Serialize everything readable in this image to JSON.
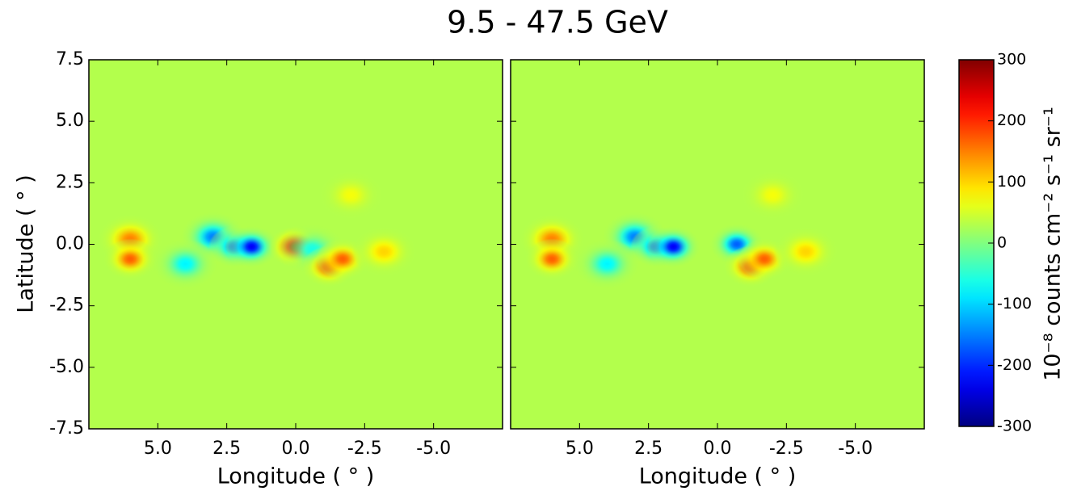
{
  "chart_data": {
    "type": "heatmap",
    "title": "9.5 - 47.5 GeV",
    "xlabel": "Longitude ( ° )",
    "ylabel": "Latitude ( ° )",
    "xlim": [
      7.5,
      -7.5
    ],
    "ylim": [
      -7.5,
      7.5
    ],
    "xticks": [
      {
        "value": 5.0,
        "label": "5.0"
      },
      {
        "value": 2.5,
        "label": "2.5"
      },
      {
        "value": 0,
        "label": "0.0"
      },
      {
        "value": -2.5,
        "label": "-2.5"
      },
      {
        "value": -5.0,
        "label": "-5.0"
      }
    ],
    "yticks": [
      {
        "value": 7.5,
        "label": "7.5"
      },
      {
        "value": 5.0,
        "label": "5.0"
      },
      {
        "value": 2.5,
        "label": "2.5"
      },
      {
        "value": 0,
        "label": "0.0"
      },
      {
        "value": -2.5,
        "label": "-2.5"
      },
      {
        "value": -5.0,
        "label": "-5.0"
      },
      {
        "value": -7.5,
        "label": "-7.5"
      }
    ],
    "colormap": "jet",
    "background": 30,
    "clim": [
      -300,
      300
    ],
    "cticks": [
      300,
      200,
      100,
      0,
      -100,
      -200,
      -300
    ],
    "colorbar_label": "10⁻⁸ counts cm⁻² s⁻¹ sr⁻¹",
    "panels": [
      {
        "x": [
          6.0,
          6.0,
          3.0,
          2.2,
          1.6,
          4.0,
          0.0,
          -0.6,
          -1.2,
          -1.7,
          -3.2,
          -2.0
        ],
        "y": [
          0.2,
          -0.6,
          0.3,
          -0.1,
          -0.1,
          -0.8,
          -0.1,
          -0.2,
          -0.9,
          -0.6,
          -0.3,
          2.0
        ],
        "values": [
          150,
          170,
          -150,
          -180,
          -230,
          -80,
          300,
          -60,
          200,
          170,
          100,
          70
        ]
      },
      {
        "x": [
          6.0,
          6.0,
          3.0,
          2.2,
          1.6,
          4.0,
          -0.7,
          -1.2,
          -1.7,
          -3.2,
          -2.0
        ],
        "y": [
          0.2,
          -0.6,
          0.3,
          -0.1,
          -0.1,
          -0.8,
          0.0,
          -0.9,
          -0.6,
          -0.3,
          2.0
        ],
        "values": [
          150,
          170,
          -150,
          -180,
          -230,
          -80,
          -170,
          200,
          170,
          100,
          70
        ]
      }
    ]
  }
}
